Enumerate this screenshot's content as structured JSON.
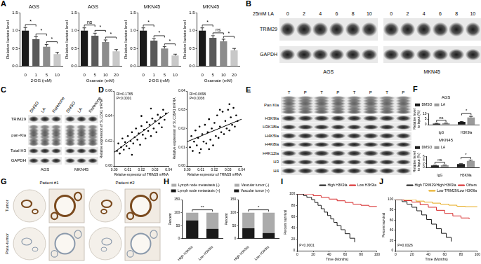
{
  "panel_labels": [
    "A",
    "B",
    "C",
    "D",
    "E",
    "F",
    "G",
    "H",
    "I",
    "J"
  ],
  "chart_data": [
    {
      "type": "bar",
      "title": "AGS",
      "xlabel": "2-DG (mM)",
      "ylabel": "Relative lactate level",
      "categories": [
        "0",
        "1",
        "5",
        "10"
      ],
      "values": [
        1.0,
        0.76,
        0.55,
        0.34
      ],
      "errors": [
        0.09,
        0.07,
        0.06,
        0.05
      ],
      "colors": [
        "#1a1a1a",
        "#5a5a5a",
        "#8c8c8c",
        "#c8c8c8"
      ],
      "ylim": [
        0,
        1.5
      ],
      "yticks": [
        {
          "value": 0,
          "label": "0.0"
        },
        0.5,
        {
          "value": 1,
          "label": "1.0"
        },
        1.5
      ],
      "significance": [
        {
          "from": 0,
          "to": 1,
          "label": "*"
        },
        {
          "from": 1,
          "to": 2,
          "label": "*"
        },
        {
          "from": 2,
          "to": 3,
          "label": "*"
        }
      ]
    },
    {
      "type": "bar",
      "title": "AGS",
      "xlabel": "Oxamate (mM)",
      "ylabel": "Relative lactate level",
      "categories": [
        "0",
        "5",
        "10",
        "20"
      ],
      "values": [
        1.0,
        0.86,
        0.68,
        0.42
      ],
      "errors": [
        0.08,
        0.07,
        0.06,
        0.05
      ],
      "colors": [
        "#1a1a1a",
        "#5a5a5a",
        "#8c8c8c",
        "#c8c8c8"
      ],
      "ylim": [
        0,
        1.5
      ],
      "yticks": [
        {
          "value": 0,
          "label": "0.0"
        },
        0.5,
        {
          "value": 1,
          "label": "1.0"
        },
        1.5
      ],
      "significance": [
        {
          "from": 0,
          "to": 1,
          "label": "ns"
        },
        {
          "from": 1,
          "to": 2,
          "label": "*"
        },
        {
          "from": 2,
          "to": 3,
          "label": "*"
        }
      ]
    },
    {
      "type": "bar",
      "title": "MKN45",
      "xlabel": "2-DG (mM)",
      "ylabel": "Relative lactate level",
      "categories": [
        "0",
        "1",
        "5",
        "10"
      ],
      "values": [
        1.0,
        0.72,
        0.5,
        0.3
      ],
      "errors": [
        0.08,
        0.06,
        0.05,
        0.04
      ],
      "colors": [
        "#1a1a1a",
        "#5a5a5a",
        "#8c8c8c",
        "#c8c8c8"
      ],
      "ylim": [
        0,
        1.5
      ],
      "yticks": [
        {
          "value": 0,
          "label": "0.0"
        },
        0.5,
        {
          "value": 1,
          "label": "1.0"
        },
        1.5
      ],
      "significance": [
        {
          "from": 0,
          "to": 1,
          "label": "*"
        },
        {
          "from": 1,
          "to": 2,
          "label": "*"
        },
        {
          "from": 2,
          "to": 3,
          "label": "*"
        }
      ]
    },
    {
      "type": "bar",
      "title": "MKN45",
      "xlabel": "Oxamate (mM)",
      "ylabel": "Relative lactate level",
      "categories": [
        "0",
        "5",
        "10",
        "20"
      ],
      "values": [
        1.0,
        0.8,
        0.7,
        0.45
      ],
      "errors": [
        0.08,
        0.06,
        0.06,
        0.05
      ],
      "colors": [
        "#1a1a1a",
        "#5a5a5a",
        "#8c8c8c",
        "#c8c8c8"
      ],
      "ylim": [
        0,
        1.5
      ],
      "yticks": [
        {
          "value": 0,
          "label": "0.0"
        },
        0.5,
        {
          "value": 1,
          "label": "1.0"
        },
        1.5
      ],
      "significance": [
        {
          "from": 0,
          "to": 1,
          "label": "*"
        },
        {
          "from": 1,
          "to": 2,
          "label": "ns"
        },
        {
          "from": 2,
          "to": 3,
          "label": "*"
        }
      ]
    },
    {
      "type": "scatter",
      "xlabel": "Relative expression of TRIM29 mRNA",
      "ylabel": "Relative expression of SLC2A1 mRNA",
      "color": "#000000",
      "x": [
        0.002,
        0.003,
        0.004,
        0.005,
        0.006,
        0.007,
        0.008,
        0.009,
        0.01,
        0.011,
        0.012,
        0.013,
        0.014,
        0.015,
        0.016,
        0.017,
        0.018,
        0.019,
        0.02,
        0.021,
        0.022,
        0.023,
        0.024,
        0.025,
        0.026,
        0.027,
        0.028,
        0.029,
        0.03,
        0.031,
        0.032,
        0.033,
        0.034,
        0.035,
        0.036,
        0.037,
        0.038,
        0.013,
        0.02,
        0.027
      ],
      "values": [
        0.012,
        0.018,
        0.01,
        0.015,
        0.022,
        0.013,
        0.019,
        0.016,
        0.024,
        0.014,
        0.02,
        0.027,
        0.018,
        0.023,
        0.03,
        0.021,
        0.026,
        0.017,
        0.032,
        0.025,
        0.029,
        0.022,
        0.035,
        0.028,
        0.033,
        0.024,
        0.038,
        0.03,
        0.036,
        0.027,
        0.041,
        0.034,
        0.039,
        0.031,
        0.045,
        0.037,
        0.042,
        0.009,
        0.04,
        0.046
      ],
      "fit": {
        "x": [
          0,
          0.04
        ],
        "values": [
          0.011,
          0.043
        ]
      },
      "annotation": [
        "R²=0.1765",
        "P<0.0001"
      ],
      "xlim": [
        0,
        0.04
      ],
      "xticks": [
        {
          "value": 0,
          "label": "0.00"
        },
        0.01,
        0.02,
        0.03,
        0.04
      ],
      "ylim": [
        0,
        0.06
      ],
      "yticks": [
        {
          "value": 0,
          "label": "0.00"
        },
        0.02,
        0.04,
        0.06
      ]
    },
    {
      "type": "scatter",
      "xlabel": "Relative expression of TRIM29 mRNA",
      "ylabel": "Relative expression of SLC16A1 mRNA",
      "color": "#000000",
      "x": [
        0.002,
        0.003,
        0.004,
        0.005,
        0.006,
        0.007,
        0.008,
        0.009,
        0.01,
        0.011,
        0.012,
        0.013,
        0.014,
        0.015,
        0.016,
        0.017,
        0.018,
        0.019,
        0.02,
        0.021,
        0.022,
        0.023,
        0.024,
        0.025,
        0.026,
        0.027,
        0.028,
        0.029,
        0.03,
        0.031,
        0.032,
        0.033,
        0.034,
        0.035,
        0.036,
        0.037,
        0.016,
        0.024,
        0.031,
        0.009
      ],
      "values": [
        0.01,
        0.016,
        0.008,
        0.013,
        0.019,
        0.011,
        0.015,
        0.021,
        0.009,
        0.017,
        0.013,
        0.022,
        0.012,
        0.018,
        0.025,
        0.014,
        0.02,
        0.011,
        0.023,
        0.016,
        0.027,
        0.015,
        0.021,
        0.018,
        0.029,
        0.017,
        0.024,
        0.02,
        0.03,
        0.019,
        0.026,
        0.022,
        0.031,
        0.021,
        0.027,
        0.024,
        0.009,
        0.03,
        0.033,
        0.007
      ],
      "fit": {
        "x": [
          0,
          0.04
        ],
        "values": [
          0.013,
          0.025
        ]
      },
      "annotation": [
        "R²=0.0696",
        "P=0.0036"
      ],
      "xlim": [
        0,
        0.04
      ],
      "xticks": [
        {
          "value": 0,
          "label": "0.00"
        },
        0.01,
        0.02,
        0.03,
        0.04
      ],
      "ylim": [
        0,
        0.04
      ],
      "yticks": [
        {
          "value": 0,
          "label": "0.00"
        },
        0.01,
        0.02,
        0.03,
        0.04
      ]
    },
    {
      "type": "bar",
      "title": "AGS",
      "ylabel": "Relative level to input (%)",
      "categories": [
        "IgG",
        "H3K9la"
      ],
      "legend": "upper left",
      "series": [
        {
          "name": "DMSO",
          "color": "#1a1a1a",
          "values": [
            1.0,
            2.5
          ],
          "errors": [
            0.2,
            0.4
          ]
        },
        {
          "name": "LA",
          "color": "#9a9a9a",
          "values": [
            1.2,
            6.5
          ],
          "errors": [
            0.2,
            1.0
          ]
        }
      ],
      "ylim": [
        0,
        10
      ],
      "yticks": [
        0,
        5,
        10
      ],
      "significance": [
        {
          "category": 0,
          "label": "ns"
        },
        {
          "category": 1,
          "label": "*"
        }
      ]
    },
    {
      "type": "bar",
      "title": "MKN45",
      "ylabel": "Relative level to input (%)",
      "categories": [
        "IgG",
        "H3K9la"
      ],
      "legend": "upper left",
      "series": [
        {
          "name": "DMSO",
          "color": "#1a1a1a",
          "values": [
            1.0,
            1.8
          ],
          "errors": [
            0.15,
            0.2
          ]
        },
        {
          "name": "LA",
          "color": "#9a9a9a",
          "values": [
            1.1,
            3.5
          ],
          "errors": [
            0.15,
            0.4
          ]
        }
      ],
      "ylim": [
        0,
        6
      ],
      "yticks": [
        0,
        2,
        4,
        6
      ],
      "significance": [
        {
          "category": 0,
          "label": "ns"
        },
        {
          "category": 1,
          "label": "*"
        }
      ]
    },
    {
      "type": "bar",
      "stacked": true,
      "ylabel": "Percent",
      "categories": [
        "High H3K9la",
        "Low H3K9la"
      ],
      "legend": "top",
      "series": [
        {
          "name": "Lymph node metastasis (+)",
          "color": "#1a1a1a",
          "values": [
            70,
            38
          ]
        },
        {
          "name": "Lymph node metastasis (-)",
          "color": "#ababab",
          "values": [
            30,
            62
          ]
        }
      ],
      "ylim": [
        0,
        150
      ],
      "yticks": [
        0,
        50,
        100,
        150
      ],
      "significance": [
        {
          "from": 0,
          "to": 1,
          "label": "**"
        }
      ]
    },
    {
      "type": "bar",
      "stacked": true,
      "ylabel": "Percent",
      "categories": [
        "High H3K9la",
        "Low H3K9la"
      ],
      "legend": "top",
      "series": [
        {
          "name": "Vascular tumor (+)",
          "color": "#1a1a1a",
          "values": [
            40,
            22
          ]
        },
        {
          "name": "Vascular tumor (-)",
          "color": "#ababab",
          "values": [
            60,
            78
          ]
        }
      ],
      "ylim": [
        0,
        150
      ],
      "yticks": [
        0,
        50,
        100,
        150
      ],
      "significance": [
        {
          "from": 0,
          "to": 1,
          "label": "*"
        }
      ]
    },
    {
      "type": "line",
      "line_style": "step",
      "xlabel": "Time (Months)",
      "ylabel": "Percent survival",
      "legend": "upper right",
      "annotation": "P<0.0001",
      "xlim": [
        0,
        100
      ],
      "xticks": [
        0,
        20,
        40,
        60,
        80,
        100
      ],
      "ylim": [
        0,
        100
      ],
      "yticks": [
        0,
        20,
        40,
        60,
        80,
        100
      ],
      "series": [
        {
          "name": "High H3K9la",
          "color": "#1a1a1a",
          "x": [
            0,
            8,
            12,
            18,
            22,
            26,
            30,
            34,
            38,
            42,
            46,
            50,
            55,
            60,
            66,
            72
          ],
          "values": [
            100,
            97,
            94,
            90,
            85,
            80,
            74,
            68,
            62,
            56,
            50,
            44,
            37,
            30,
            22,
            15
          ]
        },
        {
          "name": "Low H3K9la",
          "color": "#d62728",
          "x": [
            0,
            10,
            20,
            30,
            40,
            50,
            60,
            70,
            80,
            90,
            100
          ],
          "values": [
            100,
            100,
            97,
            94,
            91,
            88,
            85,
            82,
            80,
            78,
            78
          ]
        }
      ]
    },
    {
      "type": "line",
      "line_style": "step",
      "xlabel": "Time (Months)",
      "ylabel": "Percent survival",
      "legend": "upper right",
      "annotation": "P=0.0026",
      "xlim": [
        0,
        100
      ],
      "xticks": [
        0,
        20,
        40,
        60,
        80,
        100
      ],
      "ylim": [
        0,
        100
      ],
      "yticks": [
        0,
        20,
        40,
        60,
        80,
        100
      ],
      "series": [
        {
          "name": "High TRIM29/High H3K9la",
          "color": "#1a1a1a",
          "x": [
            0,
            8,
            14,
            20,
            26,
            32,
            38,
            44,
            50,
            56,
            62,
            68
          ],
          "values": [
            100,
            96,
            91,
            85,
            78,
            70,
            61,
            52,
            43,
            34,
            26,
            18
          ]
        },
        {
          "name": "Others",
          "color": "#d62728",
          "x": [
            0,
            10,
            20,
            30,
            40,
            50,
            60,
            70,
            80,
            90
          ],
          "values": [
            100,
            98,
            95,
            90,
            85,
            79,
            73,
            68,
            64,
            62
          ]
        },
        {
          "name": "Low TRIM29/Low H3K9la",
          "color": "#e6a817",
          "x": [
            0,
            15,
            25,
            35,
            45,
            55,
            65,
            75,
            85,
            100
          ],
          "values": [
            100,
            100,
            97,
            95,
            93,
            91,
            89,
            87,
            86,
            86
          ]
        }
      ]
    }
  ],
  "blots": [
    {
      "treatment": "25mM LA",
      "lanes": [
        "0",
        "2",
        "4",
        "6",
        "8",
        "10"
      ],
      "groups": [
        "AGS",
        "MKN45"
      ],
      "rows": [
        "TRIM29",
        "GAPDH"
      ]
    },
    {
      "lanes": [
        "DMSO",
        "LA",
        "Rotenone"
      ],
      "groups": [
        "AGS",
        "MKN45"
      ],
      "rows": [
        "TRIM29",
        "pan-Kla",
        "Total H3",
        "GAPDH"
      ]
    },
    {
      "lanes": [
        "T",
        "P",
        "T",
        "P",
        "T",
        "P",
        "T",
        "P"
      ],
      "rows": [
        "Pan Kla",
        "H3K9la",
        "H3K18la",
        "H4K5la",
        "H4K8la",
        "H4K12la",
        "H3",
        "H4"
      ]
    }
  ],
  "ihc": {
    "columns": [
      "Patient #1",
      "Patient #2"
    ],
    "rows": [
      "Tumor",
      "Para-tumor"
    ]
  }
}
